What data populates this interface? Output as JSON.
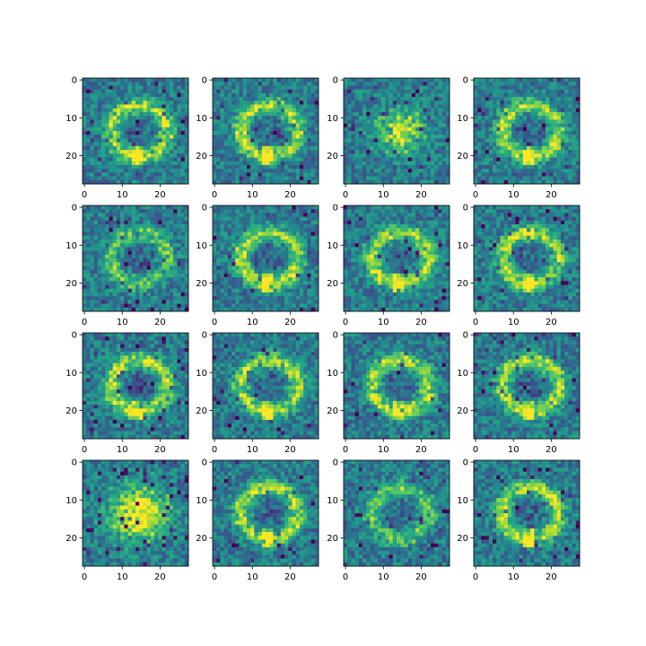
{
  "chart_data": {
    "type": "heatmap",
    "grid": {
      "rows": 4,
      "cols": 4
    },
    "colormap": "viridis",
    "image_size": [
      28,
      28
    ],
    "x_ticks": [
      0,
      10,
      20
    ],
    "y_ticks": [
      0,
      10,
      20
    ],
    "xlim": [
      -0.5,
      27.5
    ],
    "ylim": [
      27.5,
      -0.5
    ],
    "panels": [
      {
        "pattern": "ring-zero",
        "brightness": "medium"
      },
      {
        "pattern": "ring-zero",
        "brightness": "medium"
      },
      {
        "pattern": "dense-blob",
        "brightness": "high"
      },
      {
        "pattern": "ring-zero",
        "brightness": "medium"
      },
      {
        "pattern": "diffuse-ring",
        "brightness": "medium"
      },
      {
        "pattern": "ring-zero",
        "brightness": "medium"
      },
      {
        "pattern": "ring-zero",
        "brightness": "medium"
      },
      {
        "pattern": "ring-zero",
        "brightness": "medium"
      },
      {
        "pattern": "ring-zero",
        "brightness": "medium"
      },
      {
        "pattern": "ring-zero",
        "brightness": "medium"
      },
      {
        "pattern": "ring-zero",
        "brightness": "medium"
      },
      {
        "pattern": "ring-zero",
        "brightness": "medium"
      },
      {
        "pattern": "bright-blob",
        "brightness": "very-high"
      },
      {
        "pattern": "ring-zero",
        "brightness": "medium"
      },
      {
        "pattern": "noisy-ring",
        "brightness": "low"
      },
      {
        "pattern": "ring-zero",
        "brightness": "medium"
      }
    ]
  }
}
